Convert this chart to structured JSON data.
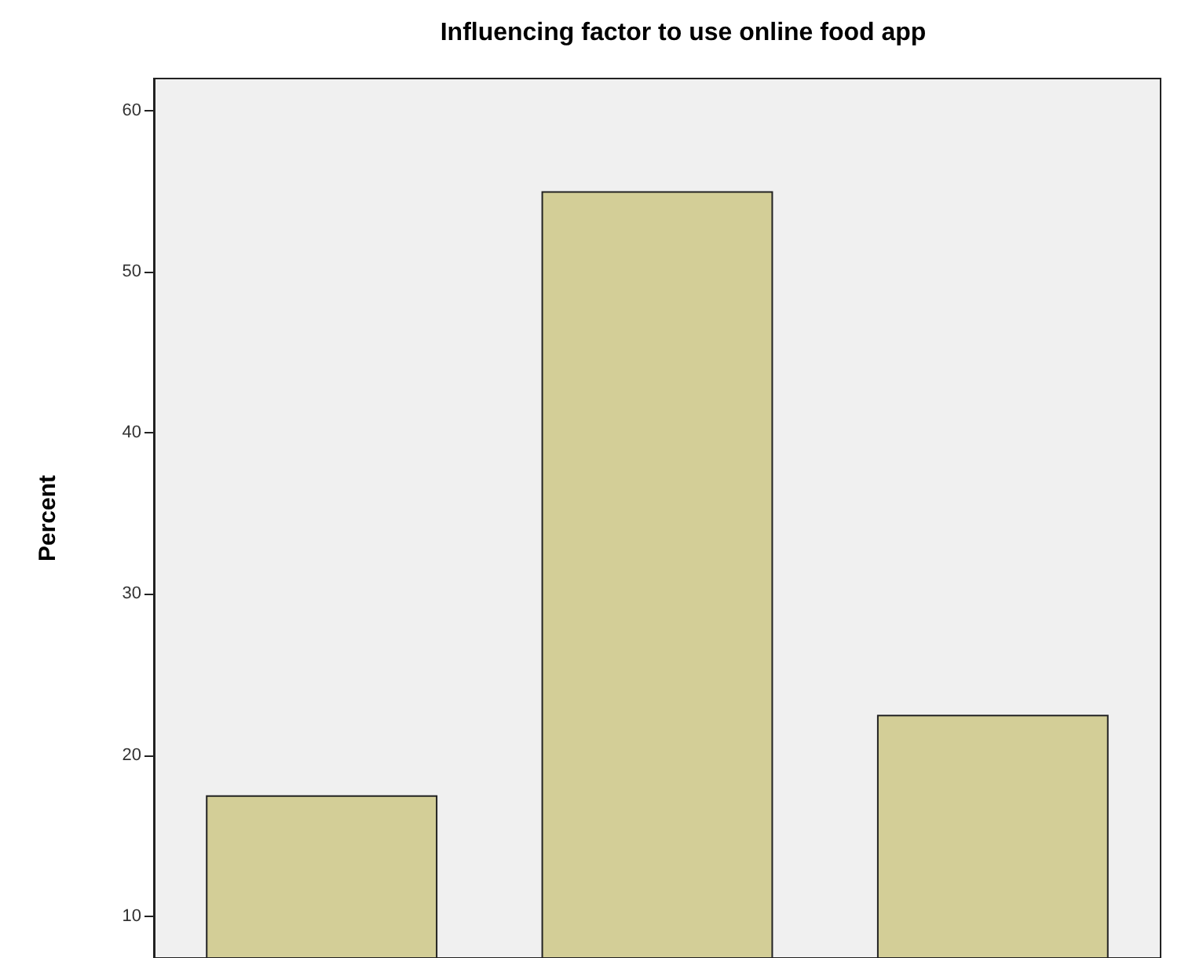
{
  "chart_data": {
    "type": "bar",
    "title": "Influencing factor to use online food app",
    "ylabel": "Percent",
    "categories": [
      null,
      null,
      null
    ],
    "series": [
      {
        "color": "#d3ce97",
        "values": [
          17.5,
          55,
          22.5
        ]
      }
    ],
    "ylim": [
      7.4,
      62
    ],
    "yticks": [
      10,
      20,
      30,
      40,
      50,
      60
    ],
    "grid": false,
    "tick_labels": "y"
  }
}
